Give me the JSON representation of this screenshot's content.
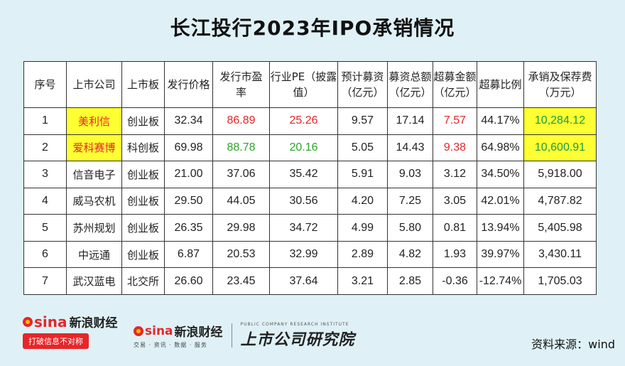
{
  "title": "长江投行2023年IPO承销情况",
  "chart_data": {
    "type": "table",
    "columns": [
      "序号",
      "上市公司",
      "上市板",
      "发行价格",
      "发行市盈率",
      "行业PE（披露值）",
      "预计募资（亿元）",
      "募资总额（亿元）",
      "超募金额（亿元）",
      "超募比例",
      "承销及保荐费（万元）"
    ],
    "rows": [
      [
        "1",
        "美利信",
        "创业板",
        "32.34",
        "86.89",
        "25.26",
        "9.57",
        "17.14",
        "7.57",
        "44.17%",
        "10,284.12"
      ],
      [
        "2",
        "爱科赛博",
        "科创板",
        "69.98",
        "88.78",
        "20.16",
        "5.05",
        "14.43",
        "9.38",
        "64.98%",
        "10,600.91"
      ],
      [
        "3",
        "信音电子",
        "创业板",
        "21.00",
        "37.06",
        "35.42",
        "5.91",
        "9.03",
        "3.12",
        "34.50%",
        "5,918.00"
      ],
      [
        "4",
        "威马农机",
        "创业板",
        "29.50",
        "44.05",
        "30.56",
        "4.20",
        "7.25",
        "3.05",
        "42.01%",
        "4,787.82"
      ],
      [
        "5",
        "苏州规划",
        "创业板",
        "26.35",
        "29.98",
        "34.72",
        "4.99",
        "5.80",
        "0.81",
        "13.94%",
        "5,405.98"
      ],
      [
        "6",
        "中远通",
        "创业板",
        "6.87",
        "20.53",
        "32.99",
        "2.89",
        "4.82",
        "1.93",
        "39.97%",
        "3,430.11"
      ],
      [
        "7",
        "武汉蓝电",
        "北交所",
        "26.60",
        "23.45",
        "37.64",
        "3.21",
        "2.85",
        "-0.36",
        "-12.74%",
        "1,705.03"
      ]
    ]
  },
  "table": {
    "headers": {
      "seq": "序号",
      "company": "上市公司",
      "board": "上市板",
      "price": "发行价格",
      "pe_l1": "发行市盈",
      "pe_l2": "率",
      "ind_l1": "行业PE（披露",
      "ind_l2": "值）",
      "plan_l1": "预计募资",
      "plan_l2": "（亿元）",
      "total_l1": "募资总额",
      "total_l2": "（亿元）",
      "over_l1": "超募金额",
      "over_l2": "（亿元）",
      "ratio": "超募比例",
      "fee_l1": "承销及保荐费",
      "fee_l2": "（万元）"
    }
  },
  "colors": {
    "highlight": "#ffff33",
    "red_text": "#e5262a",
    "green_text": "#2aa52a",
    "background": "#dff1f6"
  },
  "footer": {
    "sina_brand": "sina",
    "sina_cn": "新浪财经",
    "slogan": "打破信息不对称",
    "mid_brand": "sina",
    "mid_cn": "新浪财经",
    "mid_tagline": "交易 · 资讯 · 数据 · 服务",
    "research_en": "PUBLIC COMPANY RESEARCH INSTITUTE",
    "research_cn": "上市公司研究院",
    "source": "资料来源：wind"
  }
}
